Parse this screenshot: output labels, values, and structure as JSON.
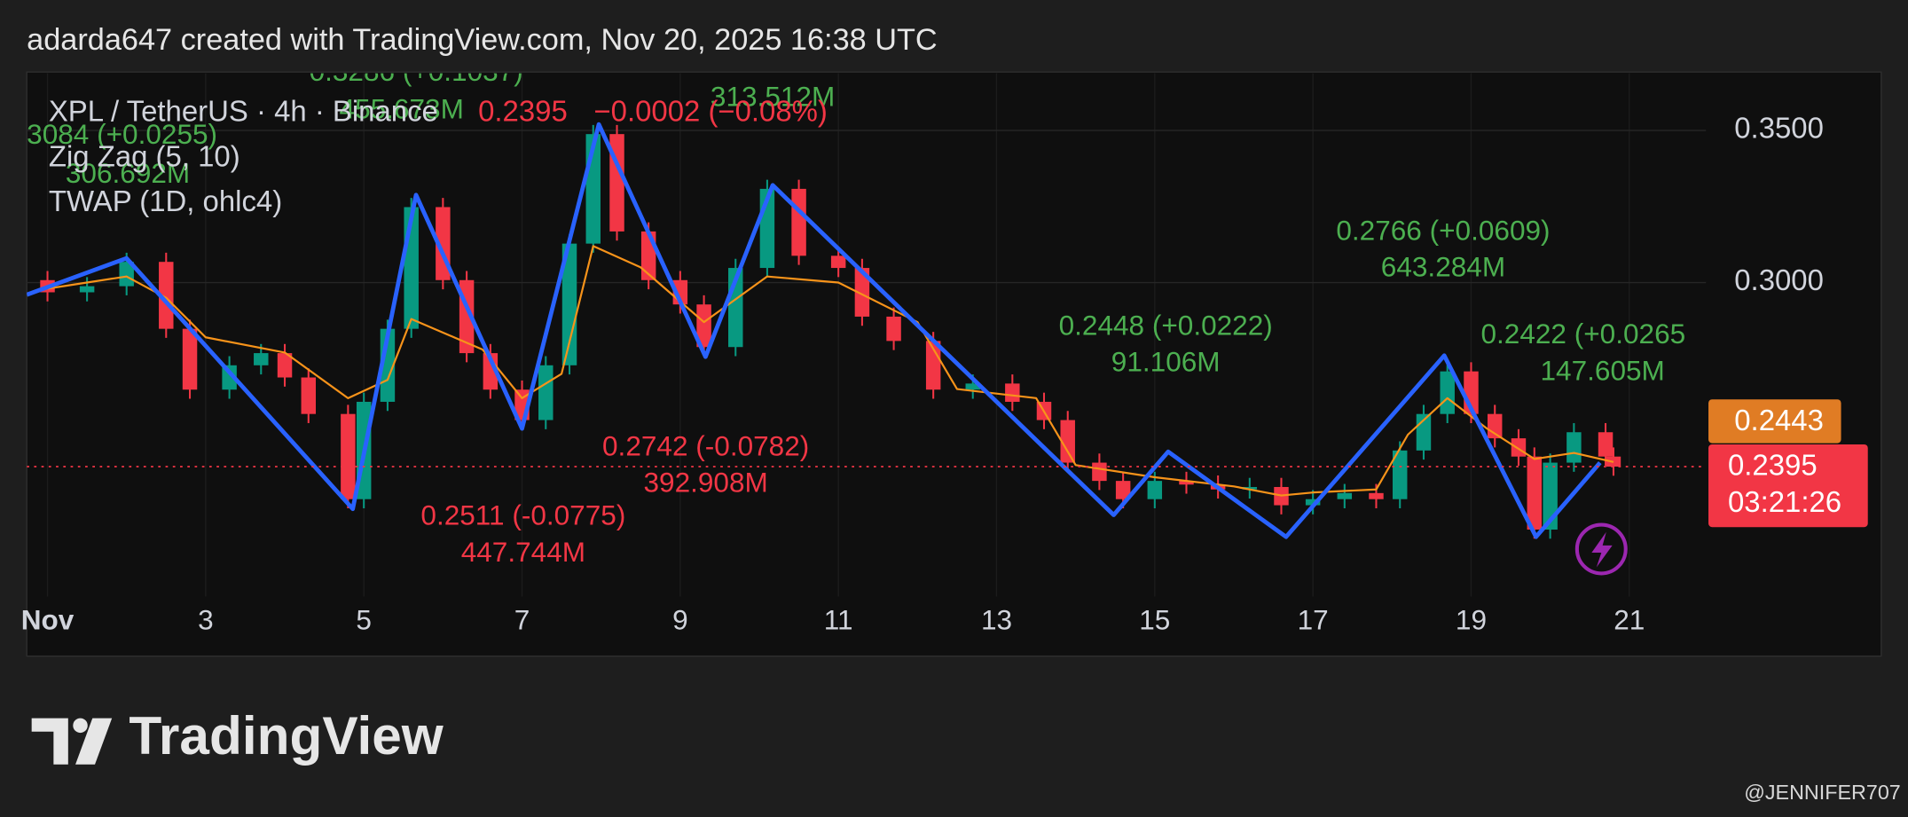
{
  "header": {
    "text": "adarda647 created with TradingView.com, Nov 20, 2025 16:38 UTC"
  },
  "footer": {
    "logo": "TradingView",
    "credit": "@JENNIFER707"
  },
  "chart_data": {
    "type": "candlestick",
    "title": "XPL / TetherUS · 4h · Binance",
    "legend_price": "0.2395",
    "legend_change": "−0.0002 (−0.08%)",
    "xlim": [
      0.738,
      21.97
    ],
    "ylim": [
      0.1968,
      0.3688
    ],
    "xticks": [
      {
        "value": 1,
        "label": "Nov"
      },
      3,
      5,
      7,
      9,
      11,
      13,
      15,
      17,
      19,
      21
    ],
    "yticks": [
      {
        "value": 0.35,
        "label": "0.3500"
      },
      {
        "value": 0.3,
        "label": "0.3000"
      }
    ],
    "grid": true,
    "up_color": "#089981",
    "down_color": "#f23645",
    "candles": {
      "x": [
        1,
        1.5,
        2,
        2.5,
        2.8,
        3.3,
        3.7,
        4,
        4.3,
        4.8,
        5,
        5.3,
        5.6,
        6,
        6.3,
        6.6,
        7,
        7.3,
        7.6,
        7.9,
        8.2,
        8.6,
        9,
        9.3,
        9.7,
        10.1,
        10.5,
        11,
        11.3,
        11.7,
        12.2,
        12.7,
        13.2,
        13.6,
        13.9,
        14.3,
        14.6,
        15,
        15.4,
        15.8,
        16.2,
        16.6,
        17,
        17.4,
        17.8,
        18.1,
        18.4,
        18.7,
        19,
        19.3,
        19.6,
        19.8,
        20,
        20.3,
        20.7,
        20.8
      ],
      "open": [
        0.3008,
        0.2968,
        0.2988,
        0.3068,
        0.2848,
        0.2648,
        0.2728,
        0.2768,
        0.2688,
        0.2568,
        0.2288,
        0.2608,
        0.2848,
        0.3248,
        0.3008,
        0.2768,
        0.2648,
        0.2548,
        0.2728,
        0.3128,
        0.3488,
        0.3168,
        0.3008,
        0.2928,
        0.2788,
        0.3048,
        0.3308,
        0.3088,
        0.3048,
        0.2888,
        0.2808,
        0.2648,
        0.2668,
        0.2608,
        0.2548,
        0.2408,
        0.2348,
        0.2288,
        0.2348,
        0.2336,
        0.232,
        0.2328,
        0.2268,
        0.2288,
        0.2308,
        0.2288,
        0.2448,
        0.2568,
        0.2708,
        0.2568,
        0.2488,
        0.2428,
        0.2188,
        0.2408,
        0.2508,
        0.2428
      ],
      "high": [
        0.3038,
        0.3018,
        0.3098,
        0.3098,
        0.2878,
        0.2758,
        0.2798,
        0.2798,
        0.2718,
        0.2598,
        0.2638,
        0.2878,
        0.3278,
        0.3278,
        0.3038,
        0.2798,
        0.2678,
        0.2758,
        0.3158,
        0.3518,
        0.3518,
        0.3198,
        0.3038,
        0.2958,
        0.3078,
        0.3338,
        0.3338,
        0.3118,
        0.3078,
        0.2918,
        0.2838,
        0.2698,
        0.2698,
        0.2638,
        0.2578,
        0.2438,
        0.2378,
        0.2378,
        0.2378,
        0.2366,
        0.2358,
        0.2358,
        0.2318,
        0.2338,
        0.2338,
        0.2478,
        0.2598,
        0.2738,
        0.2738,
        0.2598,
        0.2518,
        0.2458,
        0.2438,
        0.2538,
        0.2538,
        0.2458
      ],
      "low": [
        0.2938,
        0.2938,
        0.2958,
        0.2818,
        0.2618,
        0.2618,
        0.2698,
        0.2658,
        0.2538,
        0.2258,
        0.2258,
        0.2578,
        0.2818,
        0.2978,
        0.2738,
        0.2618,
        0.2518,
        0.2518,
        0.2698,
        0.3098,
        0.3138,
        0.2978,
        0.2898,
        0.2758,
        0.2758,
        0.3018,
        0.3058,
        0.3018,
        0.2858,
        0.2778,
        0.2618,
        0.2618,
        0.2578,
        0.2518,
        0.2378,
        0.2318,
        0.2258,
        0.2258,
        0.2306,
        0.229,
        0.229,
        0.2238,
        0.2238,
        0.2258,
        0.2258,
        0.2258,
        0.2418,
        0.2538,
        0.2538,
        0.2458,
        0.2398,
        0.2158,
        0.2158,
        0.2378,
        0.2398,
        0.2365
      ],
      "close": [
        0.2968,
        0.2988,
        0.3068,
        0.2848,
        0.2648,
        0.2728,
        0.2768,
        0.2688,
        0.2568,
        0.2288,
        0.2608,
        0.2848,
        0.3248,
        0.3008,
        0.2768,
        0.2648,
        0.2548,
        0.2728,
        0.3128,
        0.3488,
        0.3168,
        0.3008,
        0.2928,
        0.2788,
        0.3048,
        0.3308,
        0.3088,
        0.3048,
        0.2888,
        0.2808,
        0.2648,
        0.2668,
        0.2608,
        0.2548,
        0.2408,
        0.2348,
        0.2288,
        0.2348,
        0.2336,
        0.232,
        0.2328,
        0.2268,
        0.2288,
        0.2308,
        0.2288,
        0.2448,
        0.2568,
        0.2708,
        0.2568,
        0.2488,
        0.2428,
        0.2188,
        0.2408,
        0.2508,
        0.2428,
        0.2395
      ]
    },
    "zigzag": {
      "name": "Zig Zag (5, 10)",
      "color": "#2962ff",
      "x": [
        0.738,
        2.0,
        4.86,
        5.66,
        7.0,
        7.97,
        9.32,
        10.17,
        14.48,
        15.17,
        16.66,
        18.66,
        19.82,
        20.63
      ],
      "values": [
        0.296,
        0.308,
        0.2256,
        0.3288,
        0.252,
        0.352,
        0.2756,
        0.332,
        0.2236,
        0.2444,
        0.2164,
        0.276,
        0.2164,
        0.2408
      ]
    },
    "twap": {
      "name": "TWAP (1D, ohlc4)",
      "color": "#f7931a",
      "x": [
        1,
        2,
        2.5,
        3,
        4,
        4.8,
        5.3,
        5.6,
        6.5,
        7,
        7.5,
        7.9,
        8.5,
        9.3,
        10.1,
        11,
        12,
        12.5,
        13.5,
        14,
        15,
        16,
        16.6,
        17,
        17.8,
        18.2,
        18.7,
        19.2,
        19.8,
        20.3,
        20.8
      ],
      "values": [
        0.298,
        0.302,
        0.295,
        0.282,
        0.277,
        0.262,
        0.268,
        0.288,
        0.278,
        0.262,
        0.27,
        0.312,
        0.305,
        0.287,
        0.302,
        0.3,
        0.287,
        0.265,
        0.262,
        0.24,
        0.236,
        0.233,
        0.23,
        0.231,
        0.232,
        0.25,
        0.262,
        0.252,
        0.242,
        0.244,
        0.241
      ]
    },
    "annotations": [
      {
        "text": "0.3286 (+0.1037)",
        "color": "#4caf50"
      },
      {
        "text": "455.673M",
        "color": "#4caf50"
      },
      {
        "text": "3084 (+0.0255)",
        "color": "#4caf50"
      },
      {
        "text": "306.692M",
        "color": "#4caf50"
      },
      {
        "text": "313.512M",
        "color": "#4caf50"
      },
      {
        "text": "0.2766 (+0.0609)",
        "color": "#4caf50"
      },
      {
        "text": "643.284M",
        "color": "#4caf50"
      },
      {
        "text": "0.2448 (+0.0222)",
        "color": "#4caf50"
      },
      {
        "text": "91.106M",
        "color": "#4caf50"
      },
      {
        "text": "0.2422 (+0.0265",
        "color": "#4caf50"
      },
      {
        "text": "147.605M",
        "color": "#4caf50"
      },
      {
        "text": "0.2742 (-0.0782)",
        "color": "#f23645"
      },
      {
        "text": "392.908M",
        "color": "#f23645"
      },
      {
        "text": "0.2511 (-0.0775)",
        "color": "#f23645"
      },
      {
        "text": "447.744M",
        "color": "#f23645"
      }
    ],
    "badges": {
      "twap_price": "0.2443",
      "twap_color": "#e07c24",
      "last_price": "0.2395",
      "countdown": "03:21:26",
      "last_color": "#f23645"
    }
  }
}
